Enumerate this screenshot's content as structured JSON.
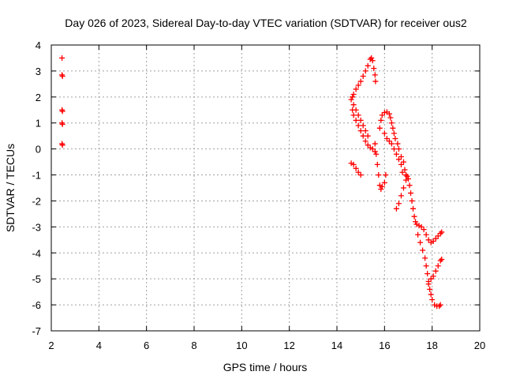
{
  "chart_data": {
    "type": "scatter",
    "title": "Day 026 of 2023, Sidereal Day-to-day VTEC variation (SDTVAR) for receiver ous2",
    "xlabel": "GPS time / hours",
    "ylabel": "SDTVAR / TECUs",
    "xlim": [
      2,
      20
    ],
    "ylim": [
      -7,
      4
    ],
    "xticks": [
      2,
      4,
      6,
      8,
      10,
      12,
      14,
      16,
      18,
      20
    ],
    "yticks": [
      -7,
      -6,
      -5,
      -4,
      -3,
      -2,
      -1,
      0,
      1,
      2,
      3,
      4
    ],
    "grid": true,
    "legend": "none",
    "marker": "plus",
    "color": "#ff0000",
    "series": [
      {
        "points": [
          [
            2.45,
            3.5
          ],
          [
            2.45,
            2.85
          ],
          [
            2.47,
            2.8
          ],
          [
            2.45,
            1.5
          ],
          [
            2.47,
            1.45
          ],
          [
            2.45,
            1.0
          ],
          [
            2.47,
            0.95
          ],
          [
            2.45,
            0.2
          ],
          [
            2.47,
            0.15
          ],
          [
            14.6,
            -0.55
          ],
          [
            14.7,
            -0.6
          ],
          [
            14.8,
            -0.75
          ],
          [
            14.9,
            -0.9
          ],
          [
            15.0,
            -1.0
          ],
          [
            14.65,
            2.0
          ],
          [
            14.7,
            2.1
          ],
          [
            14.8,
            2.3
          ],
          [
            14.9,
            2.45
          ],
          [
            15.0,
            2.6
          ],
          [
            15.1,
            2.8
          ],
          [
            15.2,
            3.0
          ],
          [
            15.3,
            3.2
          ],
          [
            15.4,
            3.45
          ],
          [
            15.45,
            3.5
          ],
          [
            15.5,
            3.4
          ],
          [
            15.55,
            3.1
          ],
          [
            15.6,
            2.85
          ],
          [
            15.62,
            2.6
          ],
          [
            14.65,
            1.5
          ],
          [
            14.7,
            1.3
          ],
          [
            14.8,
            1.1
          ],
          [
            14.9,
            0.9
          ],
          [
            15.0,
            0.7
          ],
          [
            15.1,
            0.5
          ],
          [
            15.2,
            0.3
          ],
          [
            15.3,
            0.15
          ],
          [
            15.4,
            0.05
          ],
          [
            15.5,
            0.0
          ],
          [
            15.6,
            -0.1
          ],
          [
            14.6,
            1.9
          ],
          [
            14.7,
            1.7
          ],
          [
            14.8,
            1.5
          ],
          [
            14.9,
            1.3
          ],
          [
            15.0,
            1.1
          ],
          [
            15.1,
            0.9
          ],
          [
            15.2,
            0.7
          ],
          [
            15.3,
            0.5
          ],
          [
            15.6,
            0.2
          ],
          [
            15.65,
            -0.2
          ],
          [
            15.7,
            -0.6
          ],
          [
            15.75,
            -1.0
          ],
          [
            15.8,
            -1.4
          ],
          [
            15.85,
            -1.55
          ],
          [
            15.9,
            -1.45
          ],
          [
            16.0,
            -1.3
          ],
          [
            16.05,
            -1.0
          ],
          [
            15.8,
            0.8
          ],
          [
            15.85,
            1.1
          ],
          [
            15.9,
            1.3
          ],
          [
            16.0,
            1.4
          ],
          [
            16.1,
            1.42
          ],
          [
            16.2,
            1.35
          ],
          [
            16.25,
            1.2
          ],
          [
            16.3,
            1.0
          ],
          [
            16.35,
            0.8
          ],
          [
            16.4,
            0.6
          ],
          [
            16.0,
            0.6
          ],
          [
            16.1,
            0.4
          ],
          [
            16.2,
            0.3
          ],
          [
            16.3,
            0.2
          ],
          [
            16.4,
            0.0
          ],
          [
            16.5,
            -0.2
          ],
          [
            16.6,
            -0.4
          ],
          [
            16.7,
            -0.6
          ],
          [
            16.75,
            -0.9
          ],
          [
            16.45,
            0.4
          ],
          [
            16.55,
            0.2
          ],
          [
            16.6,
            0.0
          ],
          [
            16.7,
            -0.3
          ],
          [
            16.8,
            -0.5
          ],
          [
            16.85,
            -0.8
          ],
          [
            16.9,
            -1.0
          ],
          [
            16.5,
            -2.3
          ],
          [
            16.6,
            -2.1
          ],
          [
            16.7,
            -1.8
          ],
          [
            16.8,
            -1.5
          ],
          [
            16.9,
            -1.2
          ],
          [
            16.95,
            -1.05
          ],
          [
            17.0,
            -1.15
          ],
          [
            17.05,
            -1.4
          ],
          [
            17.1,
            -1.7
          ],
          [
            17.15,
            -2.0
          ],
          [
            17.2,
            -2.3
          ],
          [
            17.25,
            -2.6
          ],
          [
            17.3,
            -2.8
          ],
          [
            17.35,
            -2.9
          ],
          [
            17.45,
            -2.95
          ],
          [
            17.55,
            -3.0
          ],
          [
            17.65,
            -3.1
          ],
          [
            17.75,
            -3.3
          ],
          [
            17.85,
            -3.5
          ],
          [
            17.95,
            -3.6
          ],
          [
            18.05,
            -3.55
          ],
          [
            18.15,
            -3.45
          ],
          [
            18.25,
            -3.35
          ],
          [
            18.35,
            -3.25
          ],
          [
            18.4,
            -3.2
          ],
          [
            17.4,
            -3.3
          ],
          [
            17.5,
            -3.6
          ],
          [
            17.6,
            -3.9
          ],
          [
            17.7,
            -4.2
          ],
          [
            17.75,
            -4.5
          ],
          [
            17.8,
            -4.8
          ],
          [
            17.85,
            -5.1
          ],
          [
            17.9,
            -5.4
          ],
          [
            17.95,
            -5.6
          ],
          [
            18.0,
            -5.8
          ],
          [
            18.1,
            -6.0
          ],
          [
            18.2,
            -6.05
          ],
          [
            18.3,
            -6.05
          ],
          [
            18.35,
            -6.0
          ],
          [
            17.85,
            -5.2
          ],
          [
            17.95,
            -5.0
          ],
          [
            18.05,
            -4.9
          ],
          [
            18.15,
            -4.7
          ],
          [
            18.25,
            -4.5
          ],
          [
            18.35,
            -4.3
          ],
          [
            18.4,
            -4.25
          ]
        ]
      }
    ]
  }
}
